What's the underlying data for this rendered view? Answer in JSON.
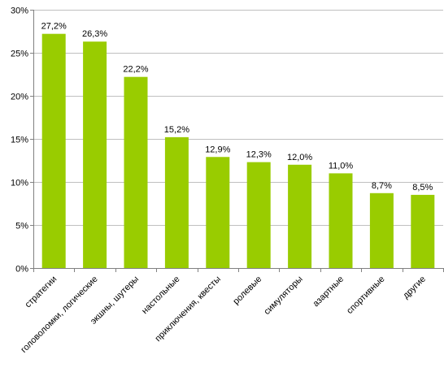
{
  "colors": {
    "bar": "#99cc00",
    "grid": "#c0c0c0",
    "axis": "#808080",
    "text": "#000000"
  },
  "chart_data": {
    "type": "bar",
    "categories": [
      "стратегии",
      "головоломки, логические",
      "экшны, шутеры",
      "настольные",
      "приключения, квесты",
      "ролевые",
      "симуляторы",
      "азартные",
      "спортивные",
      "другие"
    ],
    "values": [
      27.2,
      26.3,
      22.2,
      15.2,
      12.9,
      12.3,
      12.0,
      11.0,
      8.7,
      8.5
    ],
    "value_labels": [
      "27,2%",
      "26,3%",
      "22,2%",
      "15,2%",
      "12,9%",
      "12,3%",
      "12,0%",
      "11,0%",
      "8,7%",
      "8,5%"
    ],
    "y_ticks": [
      0,
      5,
      10,
      15,
      20,
      25,
      30
    ],
    "y_tick_labels": [
      "0%",
      "5%",
      "10%",
      "15%",
      "20%",
      "25%",
      "30%"
    ],
    "ylim": [
      0,
      30
    ],
    "grid": true,
    "title": "",
    "xlabel": "",
    "ylabel": ""
  }
}
